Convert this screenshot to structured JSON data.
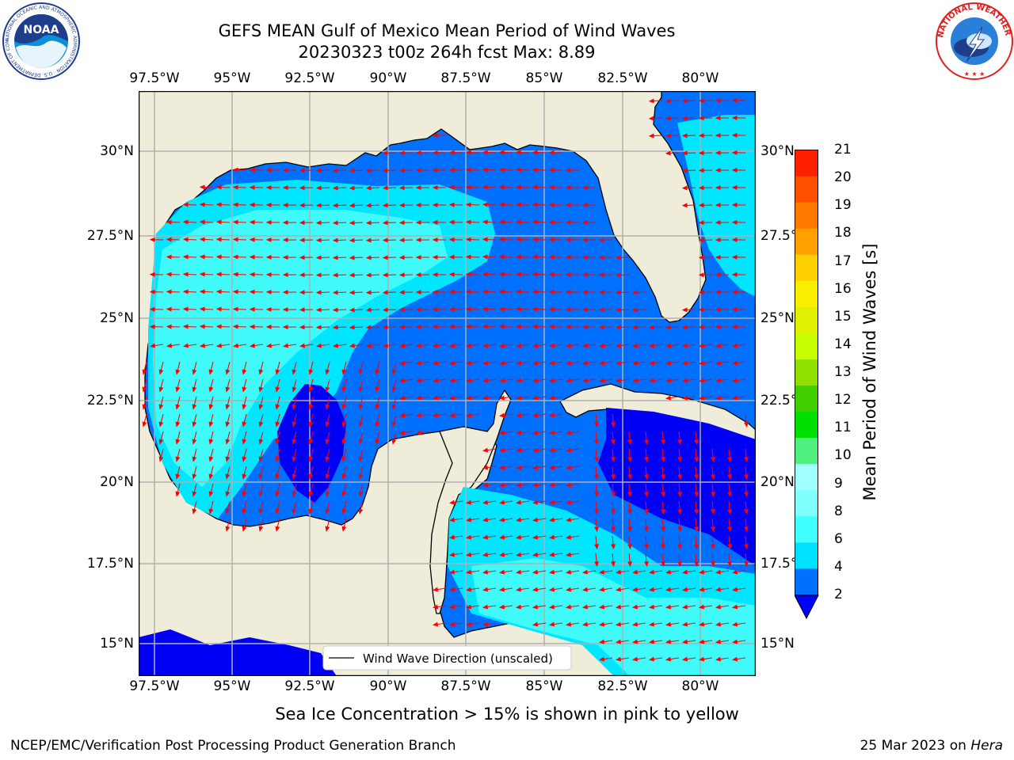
{
  "title_line1": "GEFS MEAN Gulf of Mexico Mean Period of Wind Waves",
  "title_line2": "20230323 t00z 264h fcst   Max: 8.89",
  "lon_ticks": [
    "97.5°W",
    "95°W",
    "92.5°W",
    "90°W",
    "87.5°W",
    "85°W",
    "82.5°W",
    "80°W"
  ],
  "lat_ticks_left": [
    "30°N",
    "27.5°N",
    "25°N",
    "22.5°N",
    "20°N",
    "17.5°N",
    "15°N"
  ],
  "lat_ticks_right": [
    "30°N",
    "27.5°N",
    "25°N",
    "22.5°N",
    "20°N",
    "17.5°N",
    "15°N"
  ],
  "legend_label": "Wind Wave Direction (unscaled)",
  "colorbar": {
    "label": "Mean Period of Wind Waves [s]",
    "ticks": [
      "2",
      "4",
      "6",
      "8",
      "9",
      "10",
      "11",
      "12",
      "13",
      "14",
      "15",
      "16",
      "17",
      "18",
      "19",
      "20",
      "21"
    ],
    "colors": [
      "#0070ff",
      "#00e0ff",
      "#40ffff",
      "#80ffff",
      "#a0ffff",
      "#50f080",
      "#00e000",
      "#40d000",
      "#90e000",
      "#c8ff00",
      "#e0f000",
      "#f8f000",
      "#ffd000",
      "#ffa000",
      "#ff7800",
      "#ff5000",
      "#ff2000",
      "#ff0000"
    ],
    "under_color": "#0000ff"
  },
  "colors": {
    "land": "#efedd9",
    "grid": "#b0b0b0",
    "arrow": "#ff0000",
    "level_2_4": "#0070ff",
    "level_4_6": "#00e6ff",
    "level_6_8": "#40fafa",
    "level_8_9": "#90ffff",
    "below_2": "#0000f5"
  },
  "footnote": "Sea Ice Concentration > 15% is shown in pink to yellow",
  "credit": "NCEP/EMC/Verification Post Processing Product Generation Branch",
  "date_prefix": "25 Mar 2023 on ",
  "date_machine": "Hera",
  "logos": {
    "left": "NOAA",
    "left_ring": "NATIONAL OCEANIC AND ATMOSPHERIC ADMINISTRATION · U.S. DEPARTMENT OF COMMERCE",
    "right_ring": "NATIONAL WEATHER SERVICE"
  }
}
